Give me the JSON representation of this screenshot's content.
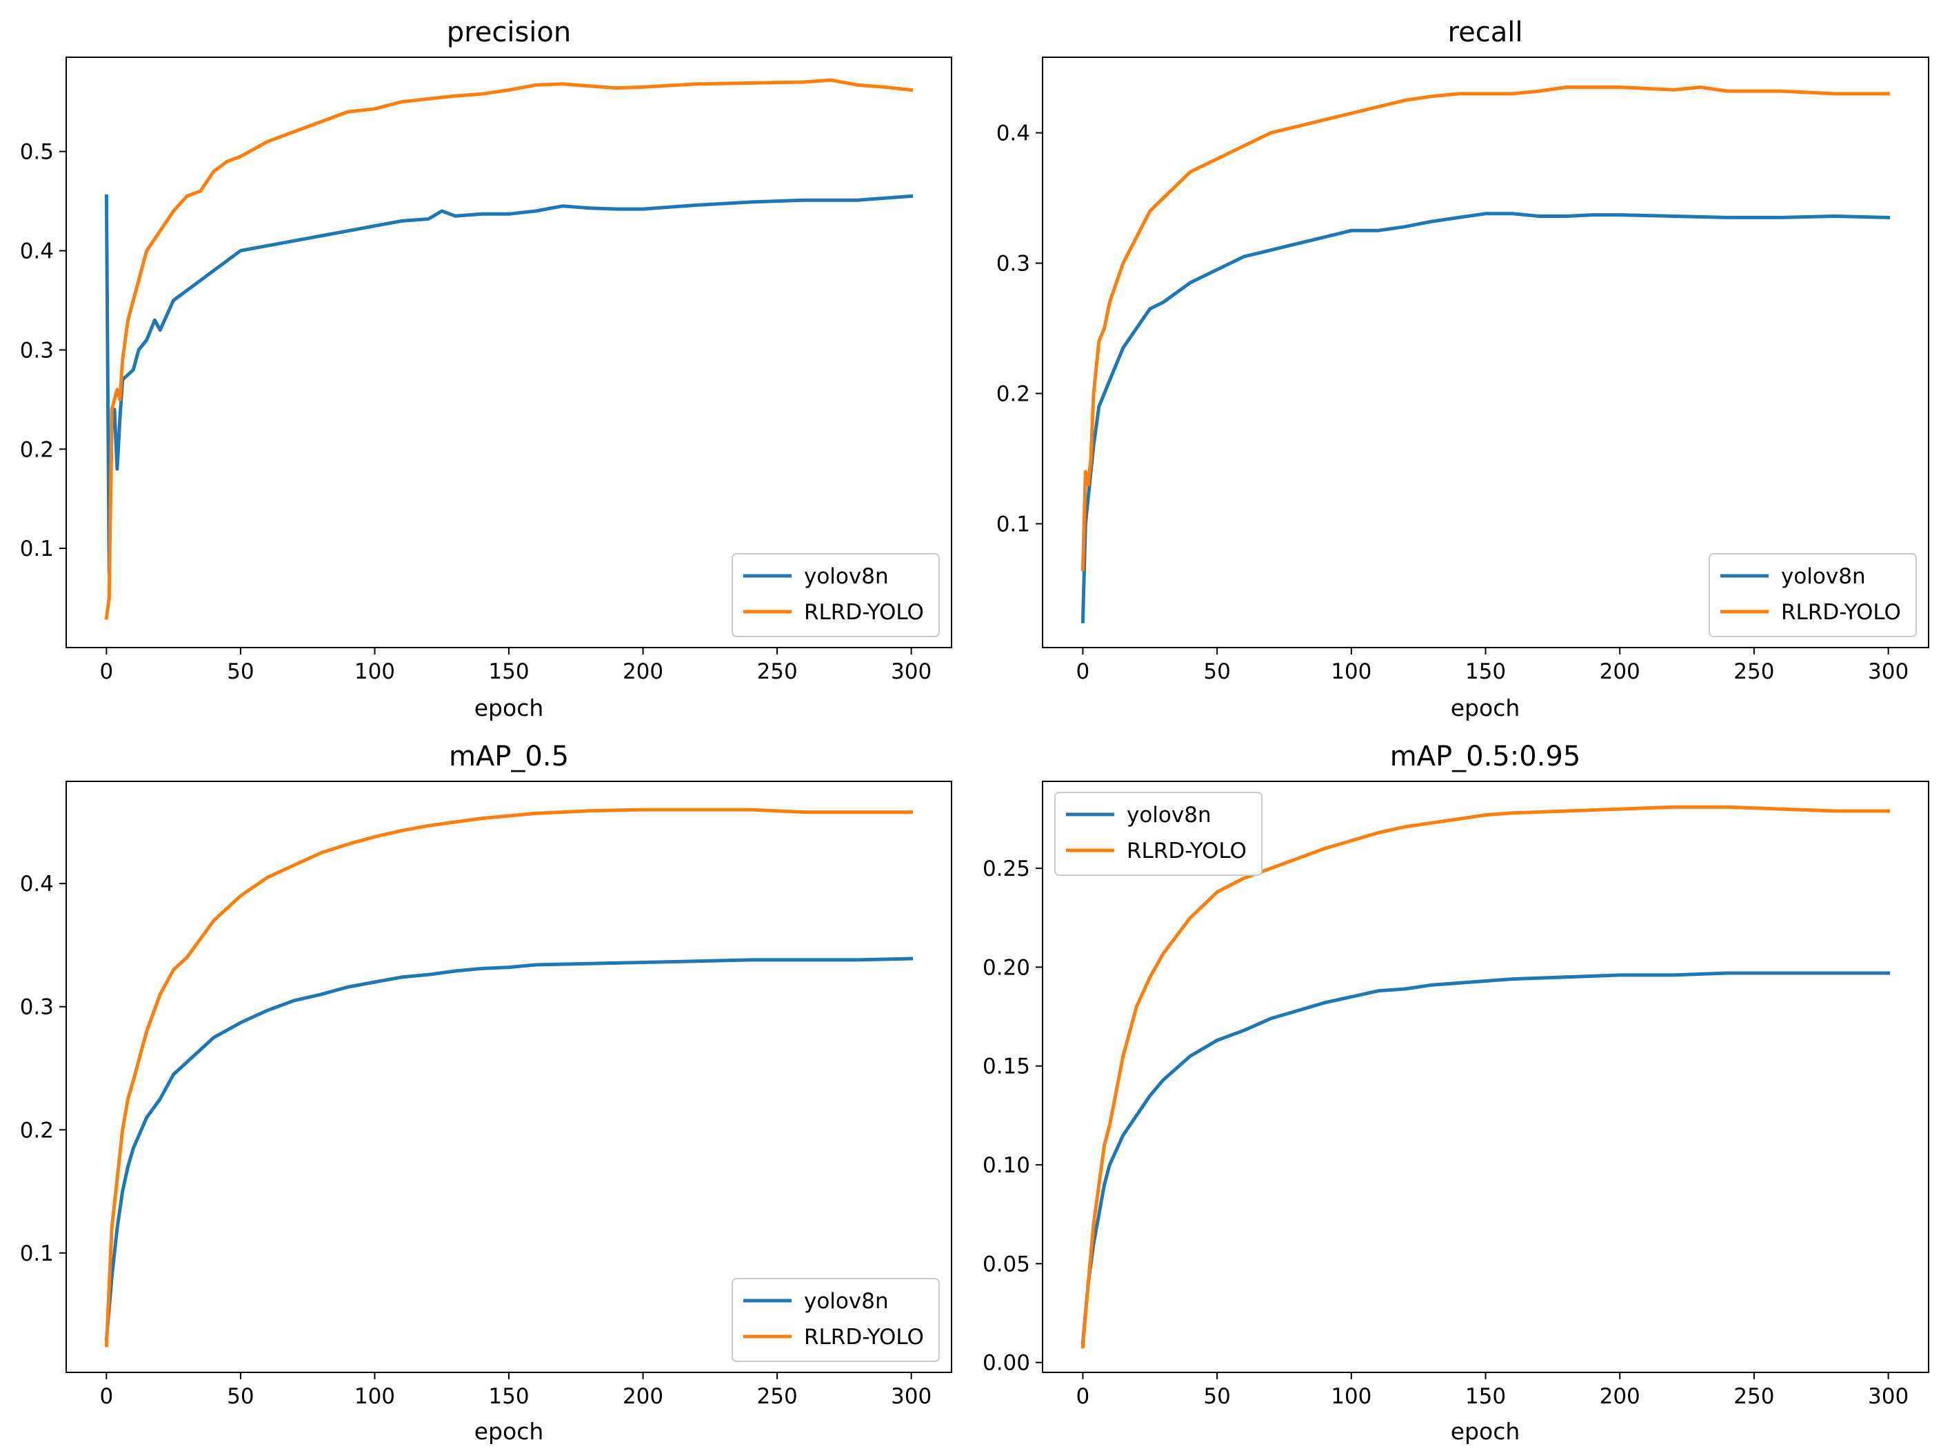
{
  "chart_data": [
    {
      "type": "line",
      "title": "precision",
      "xlabel": "epoch",
      "ylabel": "",
      "xlim": [
        -15,
        315
      ],
      "ylim": [
        0.0,
        0.595
      ],
      "xticks": [
        0,
        50,
        100,
        150,
        200,
        250,
        300
      ],
      "yticks": [
        0.1,
        0.2,
        0.3,
        0.4,
        0.5
      ],
      "ytick_format": 1,
      "legend_position": "lower-right",
      "series": [
        {
          "name": "yolov8n",
          "color": "#1f77b4",
          "x": [
            0,
            1,
            2,
            3,
            4,
            5,
            6,
            8,
            10,
            12,
            15,
            18,
            20,
            25,
            30,
            35,
            40,
            45,
            50,
            60,
            70,
            80,
            90,
            100,
            110,
            120,
            125,
            130,
            140,
            150,
            160,
            170,
            180,
            190,
            200,
            220,
            240,
            260,
            280,
            300
          ],
          "y": [
            0.455,
            0.075,
            0.22,
            0.24,
            0.18,
            0.23,
            0.27,
            0.275,
            0.28,
            0.3,
            0.31,
            0.33,
            0.32,
            0.35,
            0.36,
            0.37,
            0.38,
            0.39,
            0.4,
            0.405,
            0.41,
            0.415,
            0.42,
            0.425,
            0.43,
            0.432,
            0.44,
            0.435,
            0.437,
            0.437,
            0.44,
            0.445,
            0.443,
            0.442,
            0.442,
            0.446,
            0.449,
            0.451,
            0.451,
            0.455
          ]
        },
        {
          "name": "RLRD-YOLO",
          "color": "#ff7f0e",
          "x": [
            0,
            1,
            2,
            3,
            4,
            5,
            6,
            8,
            10,
            12,
            15,
            20,
            25,
            30,
            35,
            40,
            45,
            50,
            60,
            70,
            80,
            90,
            100,
            110,
            120,
            130,
            140,
            150,
            160,
            170,
            180,
            190,
            200,
            220,
            240,
            260,
            270,
            280,
            290,
            300
          ],
          "y": [
            0.03,
            0.05,
            0.24,
            0.25,
            0.26,
            0.25,
            0.29,
            0.33,
            0.35,
            0.37,
            0.4,
            0.42,
            0.44,
            0.455,
            0.46,
            0.48,
            0.49,
            0.495,
            0.51,
            0.52,
            0.53,
            0.54,
            0.543,
            0.55,
            0.553,
            0.556,
            0.558,
            0.562,
            0.567,
            0.568,
            0.566,
            0.564,
            0.565,
            0.568,
            0.569,
            0.57,
            0.572,
            0.567,
            0.565,
            0.562
          ]
        }
      ]
    },
    {
      "type": "line",
      "title": "recall",
      "xlabel": "epoch",
      "ylabel": "",
      "xlim": [
        -15,
        315
      ],
      "ylim": [
        0.005,
        0.458
      ],
      "xticks": [
        0,
        50,
        100,
        150,
        200,
        250,
        300
      ],
      "yticks": [
        0.1,
        0.2,
        0.3,
        0.4
      ],
      "ytick_format": 1,
      "legend_position": "lower-right",
      "series": [
        {
          "name": "yolov8n",
          "color": "#1f77b4",
          "x": [
            0,
            1,
            2,
            4,
            6,
            8,
            10,
            15,
            20,
            25,
            30,
            40,
            50,
            60,
            70,
            80,
            90,
            100,
            110,
            120,
            130,
            140,
            150,
            160,
            170,
            180,
            190,
            200,
            220,
            240,
            260,
            280,
            300
          ],
          "y": [
            0.025,
            0.1,
            0.12,
            0.16,
            0.19,
            0.2,
            0.21,
            0.235,
            0.25,
            0.265,
            0.27,
            0.285,
            0.295,
            0.305,
            0.31,
            0.315,
            0.32,
            0.325,
            0.325,
            0.328,
            0.332,
            0.335,
            0.338,
            0.338,
            0.336,
            0.336,
            0.337,
            0.337,
            0.336,
            0.335,
            0.335,
            0.336,
            0.335
          ]
        },
        {
          "name": "RLRD-YOLO",
          "color": "#ff7f0e",
          "x": [
            0,
            1,
            2,
            3,
            4,
            5,
            6,
            8,
            10,
            15,
            20,
            25,
            30,
            40,
            50,
            60,
            70,
            80,
            90,
            100,
            110,
            120,
            130,
            140,
            150,
            160,
            170,
            180,
            190,
            200,
            220,
            230,
            240,
            260,
            280,
            300
          ],
          "y": [
            0.065,
            0.14,
            0.13,
            0.15,
            0.2,
            0.22,
            0.24,
            0.25,
            0.27,
            0.3,
            0.32,
            0.34,
            0.35,
            0.37,
            0.38,
            0.39,
            0.4,
            0.405,
            0.41,
            0.415,
            0.42,
            0.425,
            0.428,
            0.43,
            0.43,
            0.43,
            0.432,
            0.435,
            0.435,
            0.435,
            0.433,
            0.435,
            0.432,
            0.432,
            0.43,
            0.43
          ]
        }
      ]
    },
    {
      "type": "line",
      "title": "mAP_0.5",
      "xlabel": "epoch",
      "ylabel": "",
      "xlim": [
        -15,
        315
      ],
      "ylim": [
        0.003,
        0.483
      ],
      "xticks": [
        0,
        50,
        100,
        150,
        200,
        250,
        300
      ],
      "yticks": [
        0.1,
        0.2,
        0.3,
        0.4
      ],
      "ytick_format": 1,
      "legend_position": "lower-right",
      "series": [
        {
          "name": "yolov8n",
          "color": "#1f77b4",
          "x": [
            0,
            2,
            4,
            6,
            8,
            10,
            15,
            20,
            25,
            30,
            40,
            50,
            60,
            70,
            80,
            90,
            100,
            110,
            120,
            130,
            140,
            150,
            160,
            180,
            200,
            220,
            240,
            260,
            280,
            300
          ],
          "y": [
            0.03,
            0.08,
            0.12,
            0.15,
            0.17,
            0.185,
            0.21,
            0.225,
            0.245,
            0.255,
            0.275,
            0.287,
            0.297,
            0.305,
            0.31,
            0.316,
            0.32,
            0.324,
            0.326,
            0.329,
            0.331,
            0.332,
            0.334,
            0.335,
            0.336,
            0.337,
            0.338,
            0.338,
            0.338,
            0.339
          ]
        },
        {
          "name": "RLRD-YOLO",
          "color": "#ff7f0e",
          "x": [
            0,
            2,
            4,
            6,
            8,
            10,
            15,
            20,
            25,
            30,
            40,
            50,
            60,
            70,
            80,
            90,
            100,
            110,
            120,
            130,
            140,
            150,
            160,
            180,
            200,
            220,
            240,
            260,
            280,
            300
          ],
          "y": [
            0.025,
            0.12,
            0.16,
            0.2,
            0.225,
            0.24,
            0.28,
            0.31,
            0.33,
            0.34,
            0.37,
            0.39,
            0.405,
            0.415,
            0.425,
            0.432,
            0.438,
            0.443,
            0.447,
            0.45,
            0.453,
            0.455,
            0.457,
            0.459,
            0.46,
            0.46,
            0.46,
            0.458,
            0.458,
            0.458
          ]
        }
      ]
    },
    {
      "type": "line",
      "title": "mAP_0.5:0.95",
      "xlabel": "epoch",
      "ylabel": "",
      "xlim": [
        -15,
        315
      ],
      "ylim": [
        -0.005,
        0.294
      ],
      "xticks": [
        0,
        50,
        100,
        150,
        200,
        250,
        300
      ],
      "yticks": [
        0.0,
        0.05,
        0.1,
        0.15,
        0.2,
        0.25
      ],
      "ytick_format": 2,
      "legend_position": "top-left",
      "series": [
        {
          "name": "yolov8n",
          "color": "#1f77b4",
          "x": [
            0,
            2,
            4,
            6,
            8,
            10,
            15,
            20,
            25,
            30,
            40,
            50,
            60,
            70,
            80,
            90,
            100,
            110,
            120,
            130,
            140,
            150,
            160,
            180,
            200,
            220,
            240,
            260,
            280,
            300
          ],
          "y": [
            0.01,
            0.04,
            0.06,
            0.075,
            0.09,
            0.1,
            0.115,
            0.125,
            0.135,
            0.143,
            0.155,
            0.163,
            0.168,
            0.174,
            0.178,
            0.182,
            0.185,
            0.188,
            0.189,
            0.191,
            0.192,
            0.193,
            0.194,
            0.195,
            0.196,
            0.196,
            0.197,
            0.197,
            0.197,
            0.197
          ]
        },
        {
          "name": "RLRD-YOLO",
          "color": "#ff7f0e",
          "x": [
            0,
            2,
            4,
            6,
            8,
            10,
            15,
            20,
            25,
            30,
            40,
            50,
            60,
            70,
            80,
            90,
            100,
            110,
            120,
            130,
            140,
            150,
            160,
            180,
            200,
            220,
            240,
            260,
            280,
            300
          ],
          "y": [
            0.008,
            0.04,
            0.07,
            0.09,
            0.11,
            0.12,
            0.155,
            0.18,
            0.195,
            0.207,
            0.225,
            0.238,
            0.245,
            0.25,
            0.255,
            0.26,
            0.264,
            0.268,
            0.271,
            0.273,
            0.275,
            0.277,
            0.278,
            0.279,
            0.28,
            0.281,
            0.281,
            0.28,
            0.279,
            0.279
          ]
        }
      ]
    }
  ]
}
